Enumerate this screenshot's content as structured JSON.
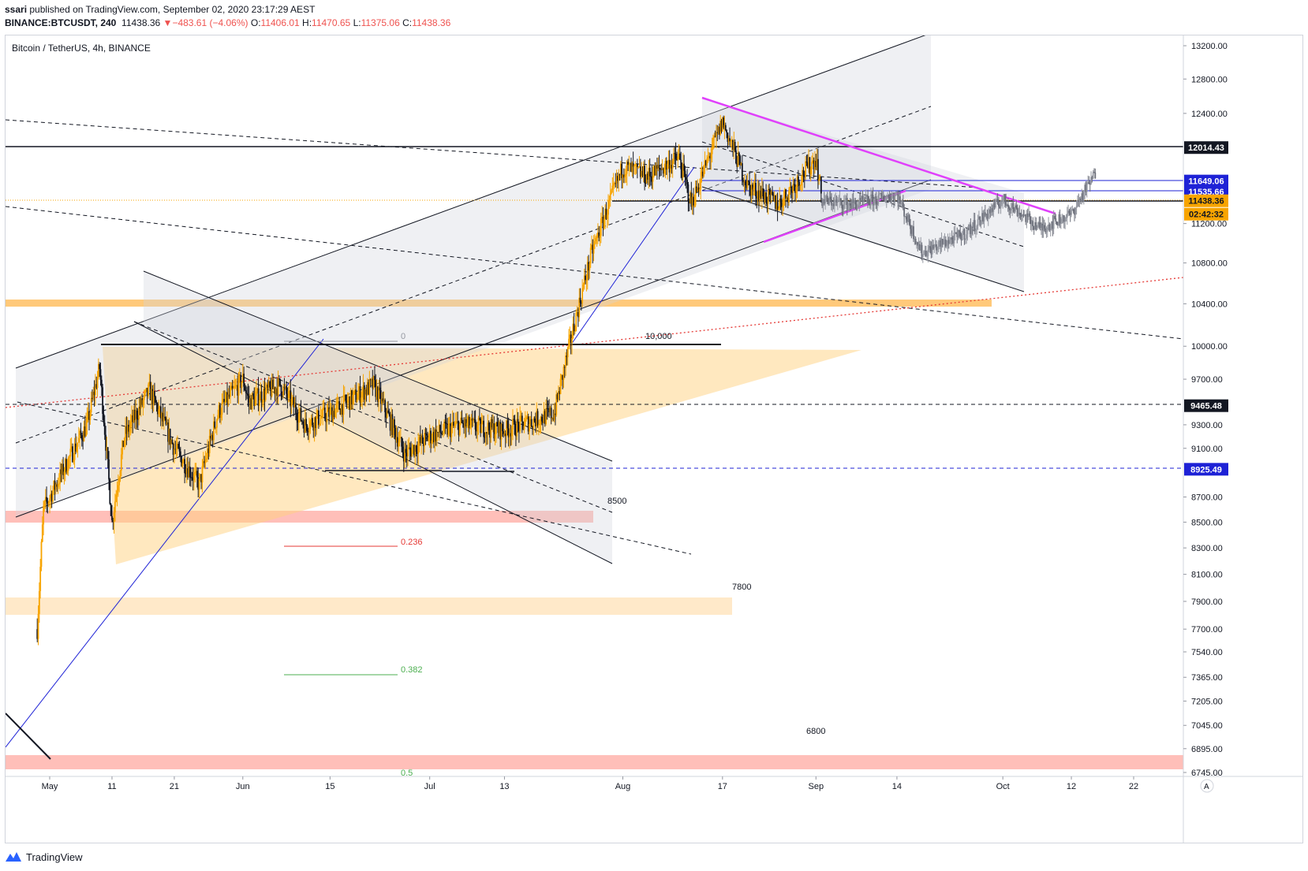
{
  "publish_line": {
    "author": "ssari",
    "text": "published on TradingView.com, September 02, 2020 23:17:29 AEST"
  },
  "ohlc_line": {
    "symbol": "BINANCE:BTCUSDT, 240",
    "last": "11438.36",
    "change": "−483.61 (−4.06%)",
    "open_label": "O:",
    "open": "11406.01",
    "high_label": "H:",
    "high": "11470.65",
    "low_label": "L:",
    "low": "11375.06",
    "close_label": "C:",
    "close": "11438.36"
  },
  "chart_title": "Bitcoin / TetherUS, 4h, BINANCE",
  "footer": {
    "brand": "TradingView"
  },
  "colors": {
    "up_candle": "#f7a400",
    "down_candle": "#131722",
    "projection": "#9598a1",
    "magenta": "#e040fb",
    "orange_zone": "#ffb74d",
    "red_zone": "#ff8a80",
    "blue_level": "#1e22d6"
  },
  "chart_data": {
    "type": "candlestick",
    "title": "Bitcoin / TetherUS, 4h, BINANCE",
    "xlabel": "",
    "ylabel": "",
    "y_ticks": [
      13200,
      12800,
      12400,
      11200,
      10800,
      10400,
      10000,
      9700,
      9300,
      9100,
      8700,
      8500,
      8300,
      8100,
      7900,
      7700,
      7540,
      7365,
      7205,
      7045,
      6895,
      6745
    ],
    "y_scale": "log",
    "x_tick_labels": [
      "May",
      "11",
      "21",
      "Jun",
      "15",
      "Jul",
      "13",
      "Aug",
      "17",
      "Sep",
      "14",
      "Oct",
      "12",
      "22"
    ],
    "x_tick_dates": [
      "2020-05-01",
      "2020-05-11",
      "2020-05-21",
      "2020-06-01",
      "2020-06-15",
      "2020-07-01",
      "2020-07-13",
      "2020-08-01",
      "2020-08-17",
      "2020-09-01",
      "2020-09-14",
      "2020-10-01",
      "2020-10-12",
      "2020-10-22"
    ],
    "price_badges": [
      {
        "value": "12014.43",
        "style": "black"
      },
      {
        "value": "11649.06",
        "style": "blue"
      },
      {
        "value": "11535.66",
        "style": "blue"
      },
      {
        "value": "11438.36",
        "style": "orange"
      },
      {
        "value": "02:42:32",
        "style": "orange"
      },
      {
        "value": "9465.48",
        "style": "black"
      },
      {
        "value": "8925.49",
        "style": "blue"
      }
    ],
    "annotations": [
      "10,000",
      "8500",
      "7800",
      "6800",
      "0",
      "0.236",
      "0.382",
      "0.5"
    ],
    "price_path": [
      {
        "date": "2020-04-29",
        "close": 7700
      },
      {
        "date": "2020-04-30",
        "close": 8600
      },
      {
        "date": "2020-05-03",
        "close": 8900
      },
      {
        "date": "2020-05-07",
        "close": 9300
      },
      {
        "date": "2020-05-09",
        "close": 9800
      },
      {
        "date": "2020-05-11",
        "close": 8500
      },
      {
        "date": "2020-05-13",
        "close": 9200
      },
      {
        "date": "2020-05-17",
        "close": 9600
      },
      {
        "date": "2020-05-21",
        "close": 9100
      },
      {
        "date": "2020-05-25",
        "close": 8800
      },
      {
        "date": "2020-05-28",
        "close": 9400
      },
      {
        "date": "2020-06-01",
        "close": 9700
      },
      {
        "date": "2020-06-02",
        "close": 9500
      },
      {
        "date": "2020-06-07",
        "close": 9650
      },
      {
        "date": "2020-06-11",
        "close": 9300
      },
      {
        "date": "2020-06-15",
        "close": 9400
      },
      {
        "date": "2020-06-22",
        "close": 9650
      },
      {
        "date": "2020-06-27",
        "close": 9050
      },
      {
        "date": "2020-07-01",
        "close": 9200
      },
      {
        "date": "2020-07-06",
        "close": 9300
      },
      {
        "date": "2020-07-13",
        "close": 9250
      },
      {
        "date": "2020-07-21",
        "close": 9400
      },
      {
        "date": "2020-07-27",
        "close": 10900
      },
      {
        "date": "2020-08-01",
        "close": 11800
      },
      {
        "date": "2020-08-05",
        "close": 11700
      },
      {
        "date": "2020-08-10",
        "close": 11900
      },
      {
        "date": "2020-08-12",
        "close": 11400
      },
      {
        "date": "2020-08-17",
        "close": 12300
      },
      {
        "date": "2020-08-21",
        "close": 11600
      },
      {
        "date": "2020-08-26",
        "close": 11400
      },
      {
        "date": "2020-09-01",
        "close": 11900
      },
      {
        "date": "2020-09-02",
        "close": 11438
      }
    ],
    "projection_path": [
      {
        "date": "2020-09-02",
        "close": 11438
      },
      {
        "date": "2020-09-07",
        "close": 11400
      },
      {
        "date": "2020-09-14",
        "close": 11500
      },
      {
        "date": "2020-09-18",
        "close": 10900
      },
      {
        "date": "2020-09-25",
        "close": 11100
      },
      {
        "date": "2020-10-01",
        "close": 11450
      },
      {
        "date": "2020-10-07",
        "close": 11150
      },
      {
        "date": "2020-10-12",
        "close": 11300
      },
      {
        "date": "2020-10-16",
        "close": 11750
      }
    ]
  }
}
